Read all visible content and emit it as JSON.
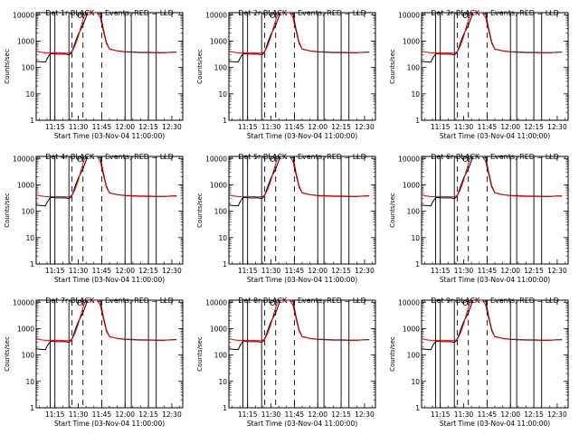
{
  "chart_data": [
    {
      "type": "line",
      "title": "Det 1r BLACK = Events, RED = LLD",
      "xlabel": "Start Time (03-Nov-04 11:00:00)",
      "ylabel": "Counts/sec"
    },
    {
      "type": "line",
      "title": "Det 2r BLACK = Events, RED = LLD",
      "xlabel": "Start Time (03-Nov-04 11:00:00)",
      "ylabel": "Counts/sec"
    },
    {
      "type": "line",
      "title": "Det 3r BLACK = Events, RED = LLD",
      "xlabel": "Start Time (03-Nov-04 11:00:00)",
      "ylabel": "Counts/sec"
    },
    {
      "type": "line",
      "title": "Det 4r BLACK = Events, RED = LLD",
      "xlabel": "Start Time (03-Nov-04 11:00:00)",
      "ylabel": "Counts/sec"
    },
    {
      "type": "line",
      "title": "Det 5r BLACK = Events, RED = LLD",
      "xlabel": "Start Time (03-Nov-04 11:00:00)",
      "ylabel": "Counts/sec"
    },
    {
      "type": "line",
      "title": "Det 6r BLACK = Events, RED = LLD",
      "xlabel": "Start Time (03-Nov-04 11:00:00)",
      "ylabel": "Counts/sec"
    },
    {
      "type": "line",
      "title": "Det 7r BLACK = Events, RED = LLD",
      "xlabel": "Start Time (03-Nov-04 11:00:00)",
      "ylabel": "Counts/sec"
    },
    {
      "type": "line",
      "title": "Det 8r BLACK = Events, RED = LLD",
      "xlabel": "Start Time (03-Nov-04 11:00:00)",
      "ylabel": "Counts/sec"
    },
    {
      "type": "line",
      "title": "Det 9r BLACK = Events, RED = LLD",
      "xlabel": "Start Time (03-Nov-04 11:00:00)",
      "ylabel": "Counts/sec"
    }
  ],
  "shared": {
    "x_ticks": [
      "11:15",
      "11:30",
      "11:45",
      "12:00",
      "12:15",
      "12:30"
    ],
    "x_tick_minutes": [
      15,
      30,
      45,
      60,
      75,
      90
    ],
    "xlim_minutes": [
      3,
      97
    ],
    "y_ticks": [
      "1",
      "10",
      "100",
      "1000",
      "10000"
    ],
    "y_tick_values": [
      1,
      10,
      100,
      1000,
      10000
    ],
    "ylim": [
      1,
      12000
    ],
    "yscale": "log",
    "solid_vlines_minutes": [
      12,
      15,
      24,
      60,
      64,
      75,
      80
    ],
    "dashed_vlines_minutes": [
      26,
      33,
      45
    ],
    "series_colors": {
      "events": "#000000",
      "lld": "#e00000"
    },
    "events": {
      "x": [
        3,
        9,
        10,
        12,
        14,
        16,
        18,
        20,
        22,
        24,
        25,
        26,
        27,
        28,
        30,
        33,
        36,
        39,
        42,
        44,
        46,
        48,
        50,
        55,
        60,
        65,
        70,
        75,
        80,
        85,
        90,
        93
      ],
      "y": [
        170,
        160,
        220,
        330,
        330,
        320,
        320,
        320,
        320,
        300,
        330,
        420,
        600,
        900,
        1800,
        4000,
        12000,
        12000,
        12000,
        12000,
        3000,
        900,
        500,
        430,
        390,
        380,
        370,
        370,
        360,
        360,
        380,
        380
      ]
    },
    "lld": {
      "x": [
        3,
        6,
        9,
        12,
        15,
        18,
        21,
        24,
        26,
        28,
        30,
        32,
        34,
        36,
        38,
        40,
        42,
        44,
        46,
        48,
        50,
        55,
        60,
        65,
        70,
        75,
        80,
        85,
        90,
        93
      ],
      "y": [
        420,
        380,
        360,
        360,
        360,
        360,
        350,
        350,
        400,
        700,
        1500,
        4000,
        9500,
        12000,
        12000,
        12000,
        12000,
        8000,
        2500,
        800,
        500,
        430,
        400,
        390,
        380,
        380,
        370,
        370,
        380,
        390
      ]
    }
  }
}
